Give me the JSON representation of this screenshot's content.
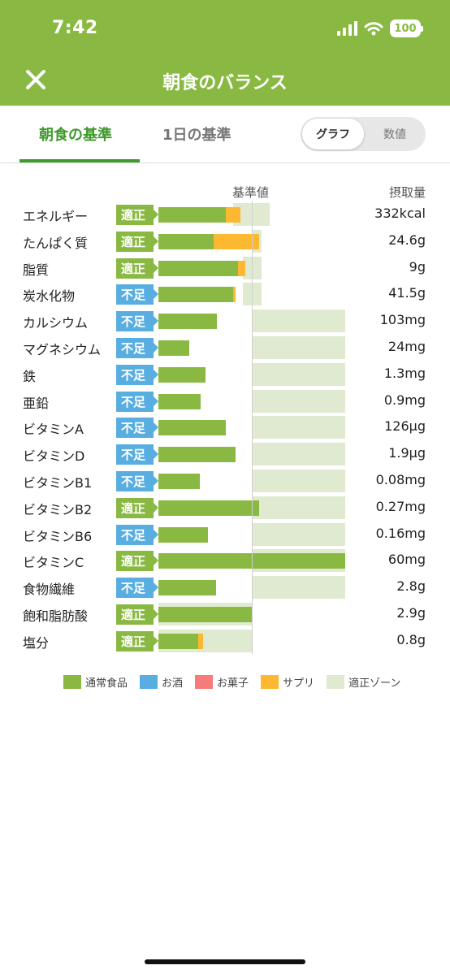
{
  "status_bar": {
    "time": "7:42",
    "battery": "100"
  },
  "header": {
    "title": "朝食のバランス"
  },
  "tabs": [
    {
      "label": "朝食の基準"
    },
    {
      "label": "1日の基準"
    }
  ],
  "view_toggle": {
    "graph": "グラフ",
    "value": "数値"
  },
  "columns": {
    "reference": "基準値",
    "intake": "摂取量"
  },
  "chart_data": {
    "type": "bar",
    "orientation": "horizontal",
    "reference_line": 100,
    "rows": [
      {
        "name": "エネルギー",
        "status": "適正",
        "normal_pct": 72,
        "supplement_pct": 16,
        "zone": [
          80,
          119
        ],
        "intake": "332kcal"
      },
      {
        "name": "たんぱく質",
        "status": "適正",
        "normal_pct": 59,
        "supplement_pct": 49,
        "zone": [
          100,
          110
        ],
        "intake": "24.6g"
      },
      {
        "name": "脂質",
        "status": "適正",
        "normal_pct": 85,
        "supplement_pct": 8,
        "zone": [
          90,
          110
        ],
        "intake": "9g"
      },
      {
        "name": "炭水化物",
        "status": "不足",
        "normal_pct": 80,
        "supplement_pct": 3,
        "zone": [
          90,
          110
        ],
        "intake": "41.5g"
      },
      {
        "name": "カルシウム",
        "status": "不足",
        "normal_pct": 63,
        "supplement_pct": 0,
        "zone": [
          100,
          200
        ],
        "intake": "103mg"
      },
      {
        "name": "マグネシウム",
        "status": "不足",
        "normal_pct": 33,
        "supplement_pct": 0,
        "zone": [
          100,
          200
        ],
        "intake": "24mg"
      },
      {
        "name": "鉄",
        "status": "不足",
        "normal_pct": 50,
        "supplement_pct": 0,
        "zone": [
          100,
          200
        ],
        "intake": "1.3mg"
      },
      {
        "name": "亜鉛",
        "status": "不足",
        "normal_pct": 45,
        "supplement_pct": 0,
        "zone": [
          100,
          200
        ],
        "intake": "0.9mg"
      },
      {
        "name": "ビタミンA",
        "status": "不足",
        "normal_pct": 72,
        "supplement_pct": 0,
        "zone": [
          100,
          200
        ],
        "intake": "126µg"
      },
      {
        "name": "ビタミンD",
        "status": "不足",
        "normal_pct": 83,
        "supplement_pct": 0,
        "zone": [
          100,
          200
        ],
        "intake": "1.9µg"
      },
      {
        "name": "ビタミンB1",
        "status": "不足",
        "normal_pct": 44,
        "supplement_pct": 0,
        "zone": [
          100,
          200
        ],
        "intake": "0.08mg"
      },
      {
        "name": "ビタミンB2",
        "status": "適正",
        "normal_pct": 108,
        "supplement_pct": 0,
        "zone": [
          100,
          200
        ],
        "intake": "0.27mg"
      },
      {
        "name": "ビタミンB6",
        "status": "不足",
        "normal_pct": 53,
        "supplement_pct": 0,
        "zone": [
          100,
          200
        ],
        "intake": "0.16mg"
      },
      {
        "name": "ビタミンC",
        "status": "適正",
        "normal_pct": 200,
        "supplement_pct": 0,
        "zone": [
          100,
          200
        ],
        "intake": "60mg"
      },
      {
        "name": "食物繊維",
        "status": "不足",
        "normal_pct": 62,
        "supplement_pct": 0,
        "zone": [
          100,
          200
        ],
        "intake": "2.8g"
      },
      {
        "name": "飽和脂肪酸",
        "status": "適正",
        "normal_pct": 100,
        "supplement_pct": 0,
        "zone": [
          0,
          100
        ],
        "intake": "2.9g"
      },
      {
        "name": "塩分",
        "status": "適正",
        "normal_pct": 43,
        "supplement_pct": 5,
        "zone": [
          0,
          100
        ],
        "intake": "0.8g"
      }
    ],
    "legend": [
      {
        "label": "通常食品",
        "color": "#8ab943"
      },
      {
        "label": "お酒",
        "color": "#58aee0"
      },
      {
        "label": "お菓子",
        "color": "#f77b7b"
      },
      {
        "label": "サプリ",
        "color": "#fcb830"
      },
      {
        "label": "適正ゾーン",
        "color": "#dfead0"
      }
    ]
  }
}
